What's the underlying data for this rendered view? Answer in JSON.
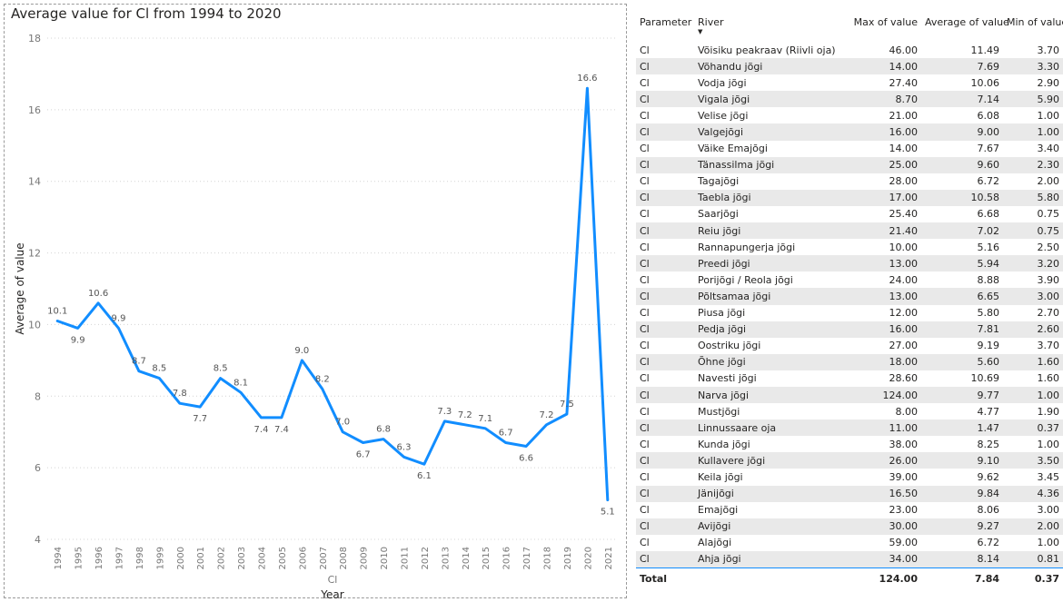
{
  "chart_data": {
    "type": "line",
    "title": "Average value for Cl from 1994 to 2020",
    "xlabel": "Year",
    "x_sublabel": "Cl",
    "ylabel": "Average of value",
    "ylim": [
      4,
      18
    ],
    "yticks": [
      4,
      6,
      8,
      10,
      12,
      14,
      16,
      18
    ],
    "grid": true,
    "line_color": "#118dff",
    "x": [
      "1994",
      "1995",
      "1996",
      "1997",
      "1998",
      "1999",
      "2000",
      "2001",
      "2002",
      "2003",
      "2004",
      "2005",
      "2006",
      "2007",
      "2008",
      "2009",
      "2010",
      "2011",
      "2012",
      "2013",
      "2014",
      "2015",
      "2016",
      "2017",
      "2018",
      "2019",
      "2020",
      "2021"
    ],
    "values": [
      10.1,
      9.9,
      10.6,
      9.9,
      8.7,
      8.5,
      7.8,
      7.7,
      8.5,
      8.1,
      7.4,
      7.4,
      9.0,
      8.2,
      7.0,
      6.7,
      6.8,
      6.3,
      6.1,
      7.3,
      7.2,
      7.1,
      6.7,
      6.6,
      7.2,
      7.5,
      16.6,
      5.1
    ],
    "labels": [
      "10.1",
      "9.9",
      "10.6",
      "9.9",
      "8.7",
      "8.5",
      "7.8",
      "7.7",
      "8.5",
      "8.1",
      "7.4",
      "7.4",
      "9.0",
      "8.2",
      "7.0",
      "6.7",
      "6.8",
      "6.3",
      "6.1",
      "7.3",
      "7.2",
      "7.1",
      "6.7",
      "6.6",
      "7.2",
      "7.5",
      "16.6",
      "5.1"
    ]
  },
  "table": {
    "headers": [
      "Parameter",
      "River",
      "Max of value",
      "Average of value",
      "Min of value"
    ],
    "rows": [
      [
        "Cl",
        "Võisiku peakraav (Riivli oja)",
        "46.00",
        "11.49",
        "3.70"
      ],
      [
        "Cl",
        "Võhandu jõgi",
        "14.00",
        "7.69",
        "3.30"
      ],
      [
        "Cl",
        "Vodja jõgi",
        "27.40",
        "10.06",
        "2.90"
      ],
      [
        "Cl",
        "Vigala jõgi",
        "8.70",
        "7.14",
        "5.90"
      ],
      [
        "Cl",
        "Velise jõgi",
        "21.00",
        "6.08",
        "1.00"
      ],
      [
        "Cl",
        "Valgejõgi",
        "16.00",
        "9.00",
        "1.00"
      ],
      [
        "Cl",
        "Väike Emajõgi",
        "14.00",
        "7.67",
        "3.40"
      ],
      [
        "Cl",
        "Tänassilma jõgi",
        "25.00",
        "9.60",
        "2.30"
      ],
      [
        "Cl",
        "Tagajõgi",
        "28.00",
        "6.72",
        "2.00"
      ],
      [
        "Cl",
        "Taebla jõgi",
        "17.00",
        "10.58",
        "5.80"
      ],
      [
        "Cl",
        "Saarjõgi",
        "25.40",
        "6.68",
        "0.75"
      ],
      [
        "Cl",
        "Reiu jõgi",
        "21.40",
        "7.02",
        "0.75"
      ],
      [
        "Cl",
        "Rannapungerja jõgi",
        "10.00",
        "5.16",
        "2.50"
      ],
      [
        "Cl",
        "Preedi jõgi",
        "13.00",
        "5.94",
        "3.20"
      ],
      [
        "Cl",
        "Porijõgi / Reola jõgi",
        "24.00",
        "8.88",
        "3.90"
      ],
      [
        "Cl",
        "Põltsamaa jõgi",
        "13.00",
        "6.65",
        "3.00"
      ],
      [
        "Cl",
        "Piusa jõgi",
        "12.00",
        "5.80",
        "2.70"
      ],
      [
        "Cl",
        "Pedja jõgi",
        "16.00",
        "7.81",
        "2.60"
      ],
      [
        "Cl",
        "Oostriku jõgi",
        "27.00",
        "9.19",
        "3.70"
      ],
      [
        "Cl",
        "Õhne jõgi",
        "18.00",
        "5.60",
        "1.60"
      ],
      [
        "Cl",
        "Navesti jõgi",
        "28.60",
        "10.69",
        "1.60"
      ],
      [
        "Cl",
        "Narva jõgi",
        "124.00",
        "9.77",
        "1.00"
      ],
      [
        "Cl",
        "Mustjõgi",
        "8.00",
        "4.77",
        "1.90"
      ],
      [
        "Cl",
        "Linnussaare oja",
        "11.00",
        "1.47",
        "0.37"
      ],
      [
        "Cl",
        "Kunda jõgi",
        "38.00",
        "8.25",
        "1.00"
      ],
      [
        "Cl",
        "Kullavere jõgi",
        "26.00",
        "9.10",
        "3.50"
      ],
      [
        "Cl",
        "Keila jõgi",
        "39.00",
        "9.62",
        "3.45"
      ],
      [
        "Cl",
        "Jänijõgi",
        "16.50",
        "9.84",
        "4.36"
      ],
      [
        "Cl",
        "Emajõgi",
        "23.00",
        "8.06",
        "3.00"
      ],
      [
        "Cl",
        "Avijõgi",
        "30.00",
        "9.27",
        "2.00"
      ],
      [
        "Cl",
        "Alajõgi",
        "59.00",
        "6.72",
        "1.00"
      ],
      [
        "Cl",
        "Ahja jõgi",
        "34.00",
        "8.14",
        "0.81"
      ]
    ],
    "total": [
      "Total",
      "",
      "124.00",
      "7.84",
      "0.37"
    ]
  }
}
